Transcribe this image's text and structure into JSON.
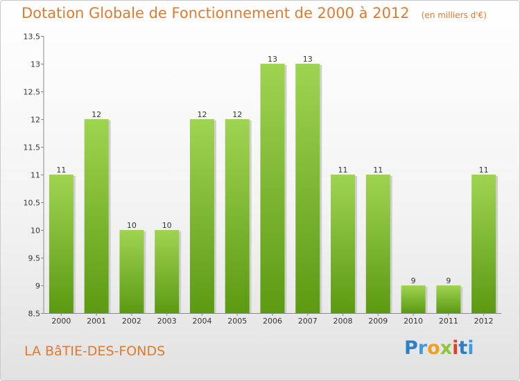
{
  "header": {
    "title": "Dotation Globale de Fonctionnement de 2000 à 2012",
    "unit": "(en milliers d'€)"
  },
  "footer": {
    "town": "LA BâTIE-DES-FONDS",
    "logo_letters": [
      {
        "char": "P",
        "color": "#2a7fc7"
      },
      {
        "char": "r",
        "color": "#3d9be0"
      },
      {
        "char": "o",
        "color": "#f0a020"
      },
      {
        "char": "x",
        "color": "#8cc63f"
      },
      {
        "char": "i",
        "color": "#e0402a"
      },
      {
        "char": "t",
        "color": "#2a7fc7"
      },
      {
        "char": "i",
        "color": "#3d9be0"
      }
    ]
  },
  "colors": {
    "accent": "#e07a2c",
    "bar_top": "#9fd451",
    "bar_bottom": "#5c9a12"
  },
  "chart_data": {
    "type": "bar",
    "title": "Dotation Globale de Fonctionnement de 2000 à 2012",
    "subtitle": "(en milliers d'€)",
    "categories": [
      "2000",
      "2001",
      "2002",
      "2003",
      "2004",
      "2005",
      "2006",
      "2007",
      "2008",
      "2009",
      "2010",
      "2011",
      "2012"
    ],
    "values": [
      11,
      12,
      10,
      10,
      12,
      12,
      13,
      13,
      11,
      11,
      9,
      9,
      11
    ],
    "data_labels": [
      "11",
      "12",
      "10",
      "10",
      "12",
      "12",
      "13",
      "13",
      "11",
      "11",
      "9",
      "9",
      "11"
    ],
    "ylim": [
      8.5,
      13.5
    ],
    "yticks": [
      8.5,
      9,
      9.5,
      10,
      10.5,
      11,
      11.5,
      12,
      12.5,
      13,
      13.5
    ],
    "ytick_labels": [
      "8.5",
      "9",
      "9.5",
      "10",
      "10.5",
      "11",
      "11.5",
      "12",
      "12.5",
      "13",
      "13.5"
    ],
    "xlabel": "",
    "ylabel": "",
    "grid": false,
    "legend": "none"
  }
}
